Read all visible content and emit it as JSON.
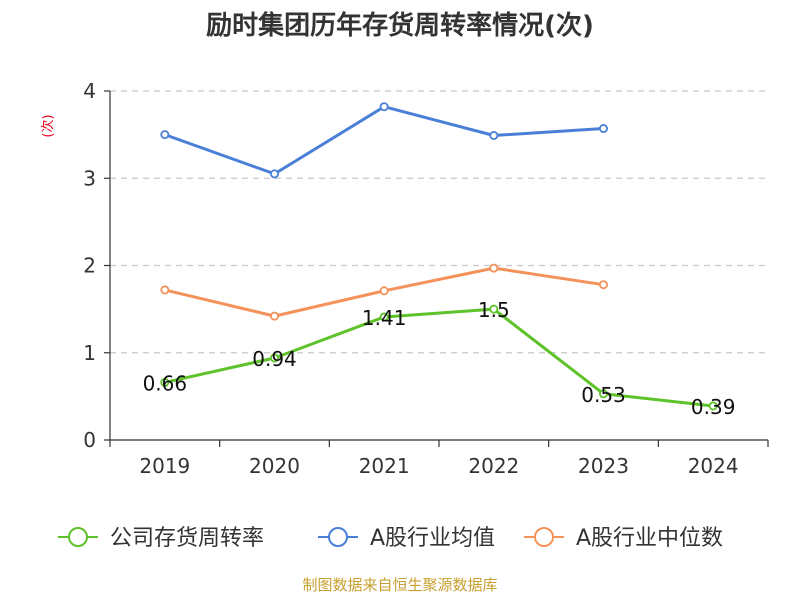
{
  "chart_data": {
    "type": "line",
    "title": "励时集团历年存货周转率情况(次)",
    "ylabel": "(次)",
    "xlabel": "",
    "categories": [
      "2019",
      "2020",
      "2021",
      "2022",
      "2023",
      "2024"
    ],
    "ylim": [
      0,
      4
    ],
    "yticks": [
      0,
      1,
      2,
      3,
      4
    ],
    "grid": true,
    "legend_position": "bottom",
    "series": [
      {
        "name": "公司存货周转率",
        "color": "#5ec22a",
        "values": [
          0.66,
          0.94,
          1.41,
          1.5,
          0.53,
          0.39
        ],
        "labels": [
          "0.66",
          "0.94",
          "1.41",
          "1.5",
          "0.53",
          "0.39"
        ]
      },
      {
        "name": "A股行业均值",
        "color": "#4a7fd8",
        "values": [
          3.5,
          3.05,
          3.82,
          3.49,
          3.57,
          null
        ],
        "labels": null
      },
      {
        "name": "A股行业中位数",
        "color": "#f5915a",
        "values": [
          1.72,
          1.42,
          1.71,
          1.97,
          1.78,
          null
        ],
        "labels": null
      }
    ]
  },
  "source": "制图数据来自恒生聚源数据库"
}
